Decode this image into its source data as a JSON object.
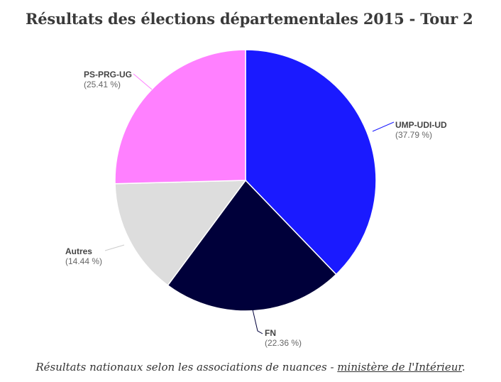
{
  "chart_data": {
    "type": "pie",
    "title": "Résultats des élections départementales 2015 - Tour 2",
    "slices": [
      {
        "label": "UMP-UDI-UD",
        "value": 37.79,
        "value_label": "(37.79 %)",
        "color": "#1a1aff"
      },
      {
        "label": "FN",
        "value": 22.36,
        "value_label": "(22.36 %)",
        "color": "#00003a"
      },
      {
        "label": "Autres",
        "value": 14.44,
        "value_label": "(14.44 %)",
        "color": "#dddddd"
      },
      {
        "label": "PS-PRG-UG",
        "value": 25.41,
        "value_label": "(25.41 %)",
        "color": "#ff80ff"
      }
    ],
    "start": "top",
    "direction": "clockwise"
  },
  "caption": {
    "text_before": "Résultats nationaux selon les associations de nuances - ",
    "link_text": "ministère de l'Intérieur",
    "text_after": "."
  }
}
